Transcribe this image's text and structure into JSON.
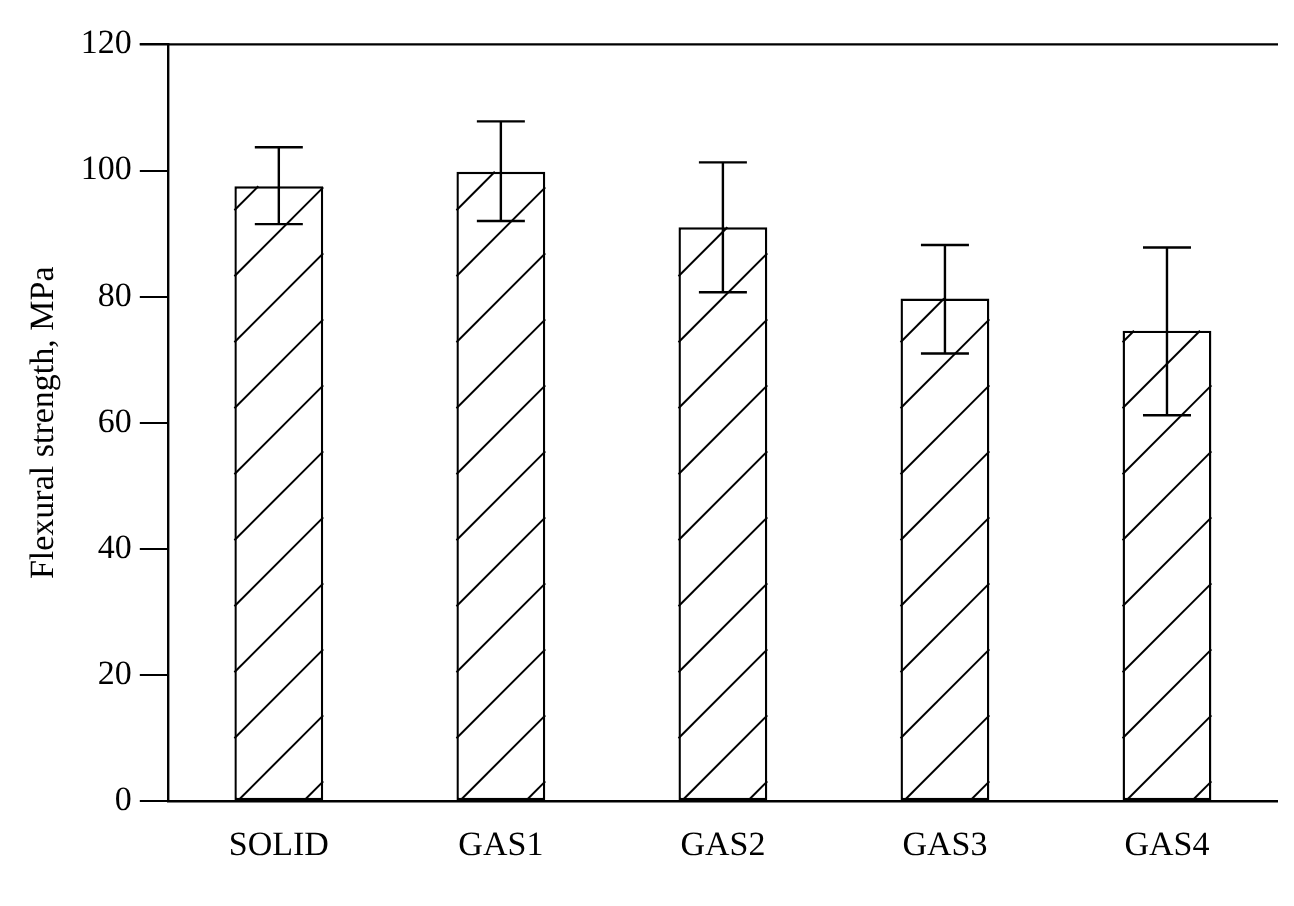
{
  "chart_data": {
    "type": "bar",
    "ylabel": "Flexural strength, MPa",
    "categories": [
      "SOLID",
      "GAS1",
      "GAS2",
      "GAS3",
      "GAS4"
    ],
    "values": [
      97.5,
      99.8,
      91,
      79.7,
      74.6
    ],
    "errors": [
      [
        91.5,
        103.7
      ],
      [
        92,
        107.8
      ],
      [
        80.7,
        101.3
      ],
      [
        71,
        88.2
      ],
      [
        61.2,
        87.8
      ]
    ],
    "color": "#ffffff",
    "ylim": [
      0,
      120
    ],
    "yticks": [
      0,
      20,
      40,
      60,
      80,
      100,
      120
    ],
    "grid": false,
    "legend": false
  }
}
